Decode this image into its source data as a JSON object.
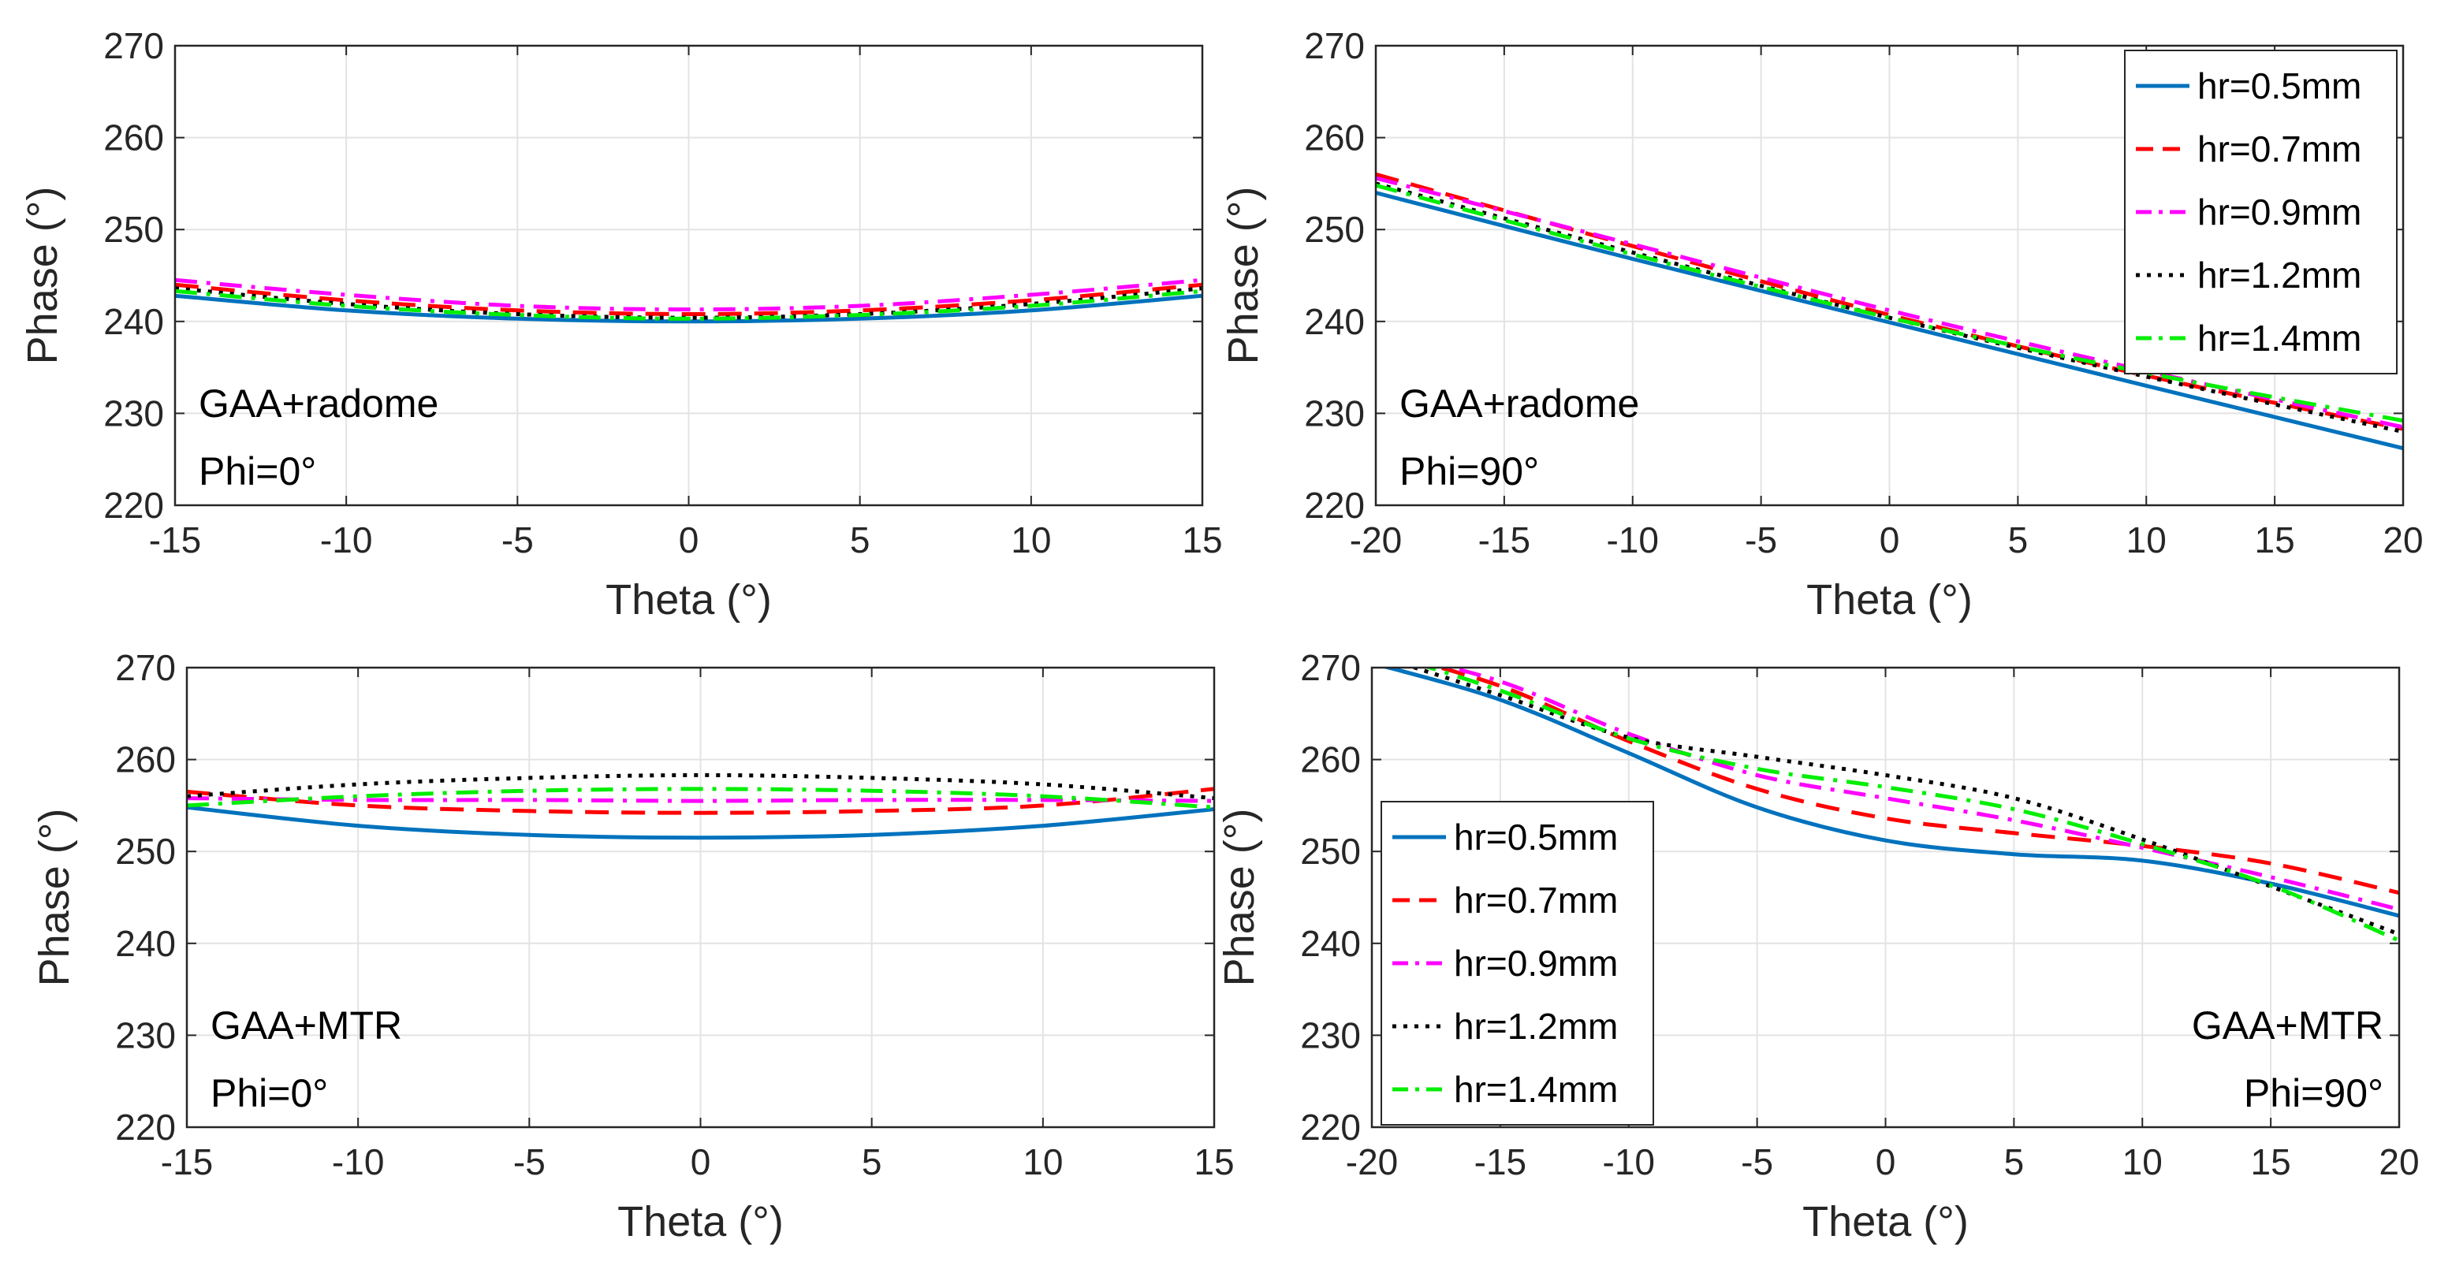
{
  "chart_data": [
    {
      "type": "line",
      "xlabel": "Theta (°)",
      "ylabel": "Phase (°)",
      "xlim": [
        -15,
        15
      ],
      "ylim": [
        220,
        270
      ],
      "xticks": [
        "-15",
        "-10",
        "-5",
        "0",
        "5",
        "10",
        "15"
      ],
      "yticks": [
        "220",
        "230",
        "240",
        "250",
        "260",
        "270"
      ],
      "grid": true,
      "annotation": [
        "GAA+radome",
        "Phi=0°"
      ],
      "annotation_position": "bottom-left",
      "legend": null,
      "x": [
        -15,
        -10,
        -5,
        0,
        5,
        10,
        15
      ],
      "series": [
        {
          "name": "hr=0.5mm",
          "color": "#0072BD",
          "style": "solid",
          "values": [
            242.8,
            241.2,
            240.3,
            240.0,
            240.3,
            241.2,
            242.8
          ]
        },
        {
          "name": "hr=0.7mm",
          "color": "#FF0000",
          "style": "dashed",
          "values": [
            244.0,
            242.3,
            241.2,
            240.8,
            241.2,
            242.3,
            244.0
          ]
        },
        {
          "name": "hr=0.9mm",
          "color": "#FF00FF",
          "style": "dashdot",
          "values": [
            244.5,
            242.9,
            241.7,
            241.3,
            241.7,
            242.9,
            244.5
          ]
        },
        {
          "name": "hr=1.2mm",
          "color": "#000000",
          "style": "dotted",
          "values": [
            243.6,
            241.9,
            240.8,
            240.4,
            240.8,
            241.9,
            243.6
          ]
        },
        {
          "name": "hr=1.4mm",
          "color": "#00EE00",
          "style": "dashdot",
          "values": [
            243.3,
            241.7,
            240.7,
            240.3,
            240.7,
            241.7,
            243.3
          ]
        }
      ]
    },
    {
      "type": "line",
      "xlabel": "Theta (°)",
      "ylabel": "Phase (°)",
      "xlim": [
        -20,
        20
      ],
      "ylim": [
        220,
        270
      ],
      "xticks": [
        "-20",
        "-15",
        "-10",
        "-5",
        "0",
        "5",
        "10",
        "15",
        "20"
      ],
      "yticks": [
        "220",
        "230",
        "240",
        "250",
        "260",
        "270"
      ],
      "grid": true,
      "annotation": [
        "GAA+radome",
        "Phi=90°"
      ],
      "annotation_position": "bottom-left",
      "legend": "top-right",
      "x": [
        -20,
        -10,
        0,
        10,
        20
      ],
      "series": [
        {
          "name": "hr=0.5mm",
          "color": "#0072BD",
          "style": "solid",
          "values": [
            254.0,
            246.8,
            239.9,
            233.0,
            226.2
          ]
        },
        {
          "name": "hr=0.7mm",
          "color": "#FF0000",
          "style": "dashed",
          "values": [
            256.0,
            248.2,
            240.7,
            234.1,
            228.3
          ]
        },
        {
          "name": "hr=0.9mm",
          "color": "#FF00FF",
          "style": "dashdot",
          "values": [
            255.6,
            248.4,
            241.2,
            234.6,
            228.5
          ]
        },
        {
          "name": "hr=1.2mm",
          "color": "#000000",
          "style": "dotted",
          "values": [
            255.0,
            247.5,
            240.4,
            234.0,
            228.0
          ]
        },
        {
          "name": "hr=1.4mm",
          "color": "#00EE00",
          "style": "dashdot",
          "values": [
            254.8,
            247.3,
            240.4,
            234.4,
            229.2
          ]
        }
      ]
    },
    {
      "type": "line",
      "xlabel": "Theta (°)",
      "ylabel": "Phase (°)",
      "xlim": [
        -15,
        15
      ],
      "ylim": [
        220,
        270
      ],
      "xticks": [
        "-15",
        "-10",
        "-5",
        "0",
        "5",
        "10",
        "15"
      ],
      "yticks": [
        "220",
        "230",
        "240",
        "250",
        "260",
        "270"
      ],
      "grid": true,
      "annotation": [
        "GAA+MTR",
        "Phi=0°"
      ],
      "annotation_position": "bottom-left",
      "legend": null,
      "x": [
        -15,
        -10,
        -5,
        0,
        5,
        10,
        15
      ],
      "series": [
        {
          "name": "hr=0.5mm",
          "color": "#0072BD",
          "style": "solid",
          "values": [
            254.8,
            252.8,
            251.8,
            251.5,
            251.8,
            252.8,
            254.6
          ]
        },
        {
          "name": "hr=0.7mm",
          "color": "#FF0000",
          "style": "dashed",
          "values": [
            256.5,
            255.0,
            254.4,
            254.2,
            254.4,
            255.0,
            256.8
          ]
        },
        {
          "name": "hr=0.9mm",
          "color": "#FF00FF",
          "style": "dashdot",
          "values": [
            255.8,
            255.6,
            255.6,
            255.5,
            255.6,
            255.6,
            255.5
          ]
        },
        {
          "name": "hr=1.2mm",
          "color": "#000000",
          "style": "dotted",
          "values": [
            256.0,
            257.3,
            258.0,
            258.3,
            258.0,
            257.3,
            255.8
          ]
        },
        {
          "name": "hr=1.4mm",
          "color": "#00EE00",
          "style": "dashdot",
          "values": [
            255.0,
            256.0,
            256.6,
            256.8,
            256.6,
            256.0,
            254.8
          ]
        }
      ]
    },
    {
      "type": "line",
      "xlabel": "Theta (°)",
      "ylabel": "Phase (°)",
      "xlim": [
        -20,
        20
      ],
      "ylim": [
        220,
        270
      ],
      "xticks": [
        "-20",
        "-15",
        "-10",
        "-5",
        "0",
        "5",
        "10",
        "15",
        "20"
      ],
      "yticks": [
        "220",
        "230",
        "240",
        "250",
        "260",
        "270"
      ],
      "grid": true,
      "annotation": [
        "GAA+MTR",
        "Phi=90°"
      ],
      "annotation_position": "bottom-right",
      "legend": "left",
      "x": [
        -20,
        -15,
        -10,
        -5,
        0,
        5,
        10,
        15,
        20
      ],
      "series": [
        {
          "name": "hr=0.5mm",
          "color": "#0072BD",
          "style": "solid",
          "values": [
            270.5,
            266.5,
            260.7,
            254.8,
            251.2,
            249.7,
            249.0,
            246.5,
            243.0
          ]
        },
        {
          "name": "hr=0.7mm",
          "color": "#FF0000",
          "style": "dashed",
          "values": [
            272.0,
            268.0,
            262.0,
            256.8,
            253.6,
            252.0,
            250.6,
            248.7,
            245.5
          ]
        },
        {
          "name": "hr=0.9mm",
          "color": "#FF00FF",
          "style": "dashdot",
          "values": [
            272.0,
            268.5,
            262.8,
            258.3,
            255.8,
            253.4,
            250.4,
            247.2,
            243.7
          ]
        },
        {
          "name": "hr=1.2mm",
          "color": "#000000",
          "style": "dotted",
          "values": [
            271.5,
            267.0,
            262.4,
            260.3,
            258.3,
            255.8,
            251.3,
            246.2,
            241.0
          ]
        },
        {
          "name": "hr=1.4mm",
          "color": "#00EE00",
          "style": "dashdot",
          "values": [
            272.0,
            267.5,
            262.3,
            259.0,
            257.0,
            254.6,
            250.8,
            246.3,
            240.3
          ]
        }
      ]
    }
  ]
}
